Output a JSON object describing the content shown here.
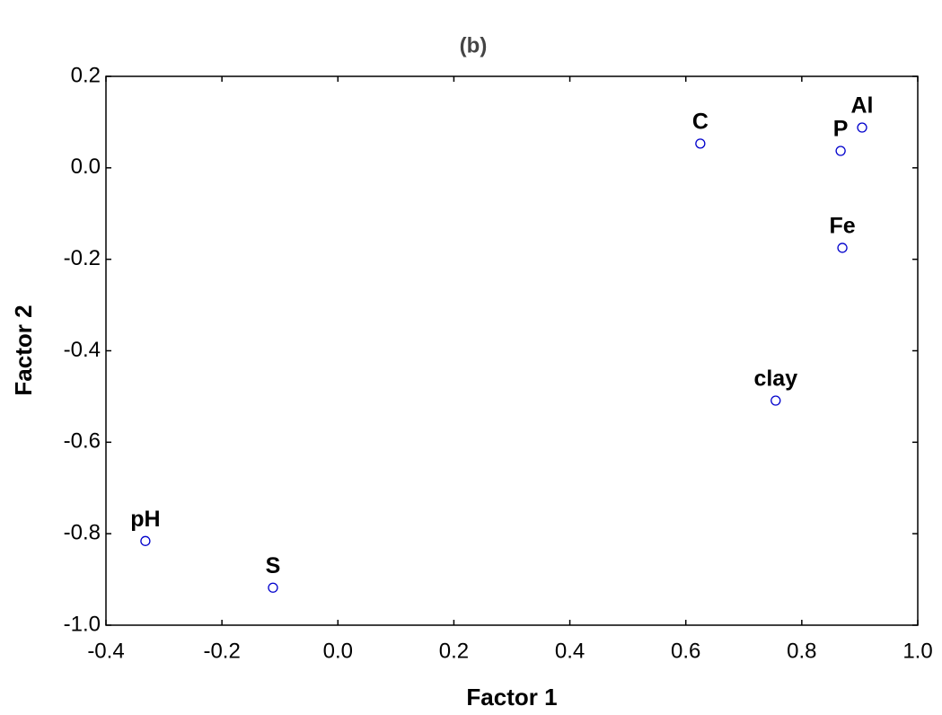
{
  "chart_data": {
    "type": "scatter",
    "title": "(b)",
    "x_label": "Factor 1",
    "y_label": "Factor 2",
    "labels": [
      "pH",
      "S",
      "C",
      "P",
      "Al",
      "Fe",
      "clay"
    ],
    "x": [
      -0.332,
      -0.112,
      0.625,
      0.867,
      0.904,
      0.87,
      0.755
    ],
    "y": [
      -0.816,
      -0.918,
      0.053,
      0.037,
      0.088,
      -0.175,
      -0.509
    ],
    "color": "#0000cc",
    "xlim": [
      -0.4,
      1.0
    ],
    "ylim": [
      -1.0,
      0.2
    ],
    "xticks": [
      -0.4,
      -0.2,
      {
        "value": 0,
        "label": "0.0"
      },
      0.2,
      0.4,
      0.6,
      0.8,
      {
        "value": 1.0,
        "label": "1.0"
      }
    ],
    "yticks": [
      {
        "value": -1.0,
        "label": "-1.0"
      },
      -0.8,
      -0.6,
      -0.4,
      -0.2,
      {
        "value": 0,
        "label": "0.0"
      },
      0.2
    ],
    "grid": false
  }
}
